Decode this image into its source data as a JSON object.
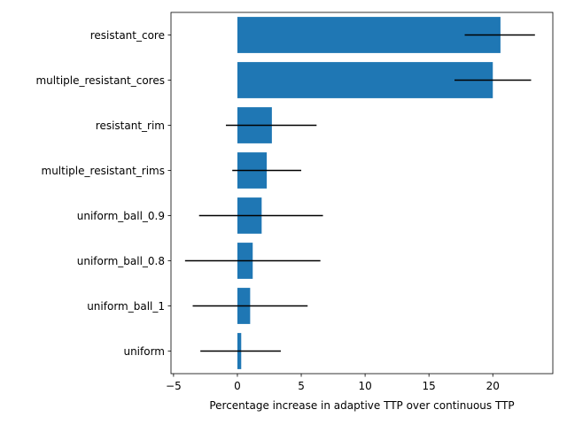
{
  "chart_data": {
    "type": "bar",
    "orientation": "horizontal",
    "title": "",
    "xlabel": "Percentage increase in adaptive TTP over continuous TTP",
    "ylabel": "",
    "xlim": [
      -5.2,
      24.7
    ],
    "xticks": [
      -5,
      0,
      5,
      10,
      15,
      20
    ],
    "grid": false,
    "legend": "none",
    "categories": [
      "resistant_core",
      "multiple_resistant_cores",
      "resistant_rim",
      "multiple_resistant_rims",
      "uniform_ball_0.9",
      "uniform_ball_0.8",
      "uniform_ball_1",
      "uniform"
    ],
    "values": [
      20.6,
      20.0,
      2.7,
      2.3,
      1.9,
      1.2,
      1.0,
      0.3
    ],
    "error_low": [
      17.8,
      17.0,
      -0.9,
      -0.4,
      -3.0,
      -4.1,
      -3.5,
      -2.9
    ],
    "error_high": [
      23.3,
      23.0,
      6.2,
      5.0,
      6.7,
      6.5,
      5.5,
      3.4
    ],
    "colors": {
      "bar": "#1f77b4",
      "errorbar": "#000000",
      "axis": "#000000"
    }
  }
}
